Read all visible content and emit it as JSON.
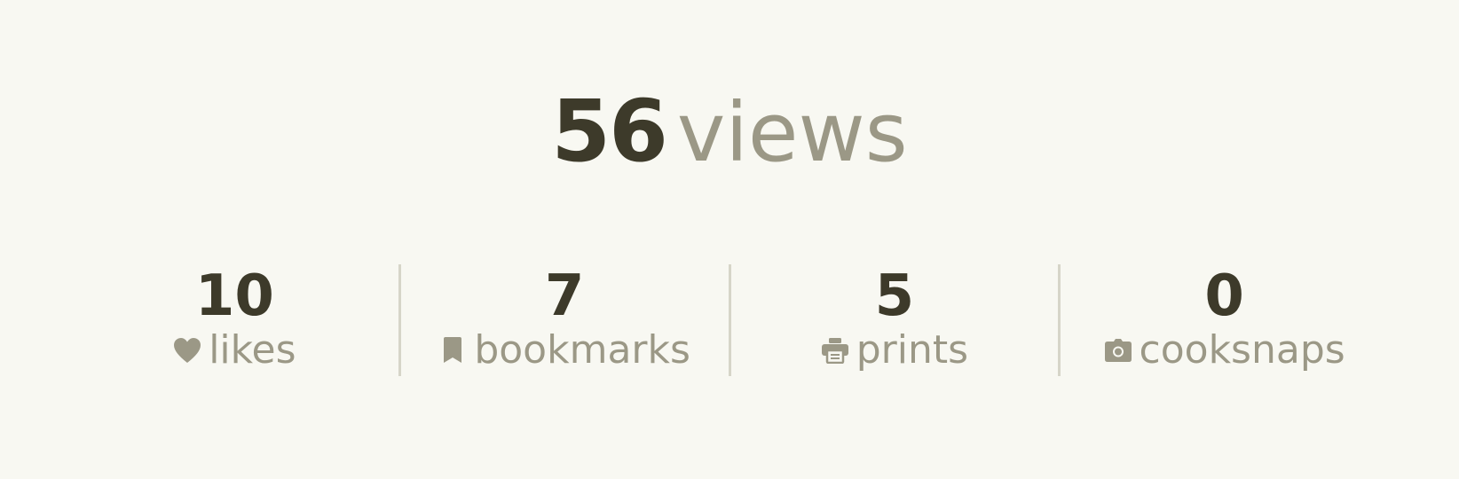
{
  "views": {
    "count": "56",
    "label": "views"
  },
  "stats": [
    {
      "value": "10",
      "label": "likes",
      "icon": "heart-icon"
    },
    {
      "value": "7",
      "label": "bookmarks",
      "icon": "bookmark-icon"
    },
    {
      "value": "5",
      "label": "prints",
      "icon": "printer-icon"
    },
    {
      "value": "0",
      "label": "cooksnaps",
      "icon": "camera-icon"
    }
  ],
  "colors": {
    "background": "#f8f8f2",
    "value_text": "#3d3a2a",
    "label_text": "#9b9886",
    "divider": "#d6d5c8"
  }
}
